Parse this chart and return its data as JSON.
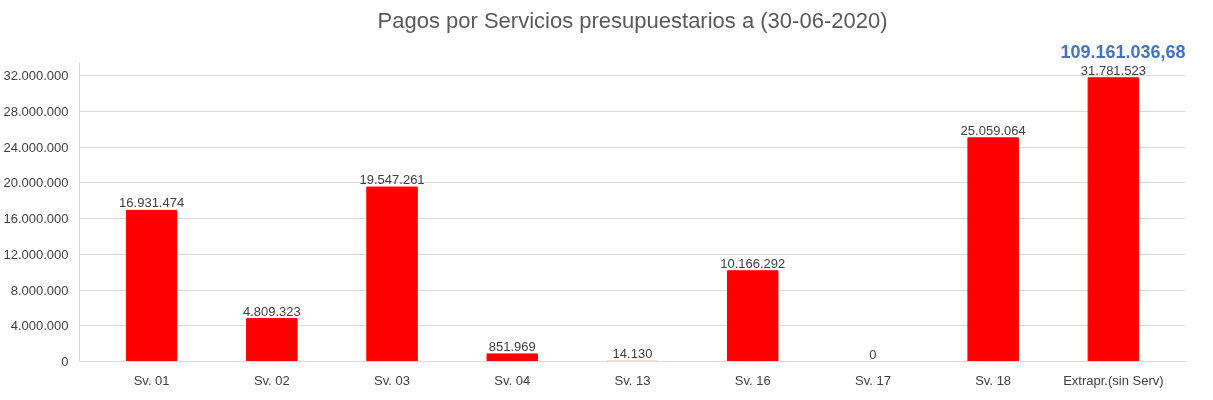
{
  "chart_data": {
    "type": "bar",
    "title": "Pagos por Servicios presupuestarios a (30-06-2020)",
    "annotations": [
      "109.161.036,68"
    ],
    "categories": [
      "Sv. 01",
      "Sv. 02",
      "Sv. 03",
      "Sv. 04",
      "Sv. 13",
      "Sv. 16",
      "Sv. 17",
      "Sv. 18",
      "Extrapr.(sin Serv)"
    ],
    "values": [
      16931474,
      4809323,
      19547261,
      851969,
      14130,
      10166292,
      0,
      25059064,
      31781523
    ],
    "value_labels": [
      "16.931.474",
      "4.809.323",
      "19.547.261",
      "851.969",
      "14.130",
      "10.166.292",
      "0",
      "25.059.064",
      "31.781.523"
    ],
    "color": "#ff0000",
    "ylim": [
      0,
      33500000
    ],
    "yticks": [
      {
        "value": 0,
        "label": "0"
      },
      {
        "value": 4000000,
        "label": "4.000.000"
      },
      {
        "value": 8000000,
        "label": "8.000.000"
      },
      {
        "value": 12000000,
        "label": "12.000.000"
      },
      {
        "value": 16000000,
        "label": "16.000.000"
      },
      {
        "value": 20000000,
        "label": "20.000.000"
      },
      {
        "value": 24000000,
        "label": "24.000.000"
      },
      {
        "value": 28000000,
        "label": "28.000.000"
      },
      {
        "value": 32000000,
        "label": "32.000.000"
      }
    ],
    "grid": "y"
  }
}
